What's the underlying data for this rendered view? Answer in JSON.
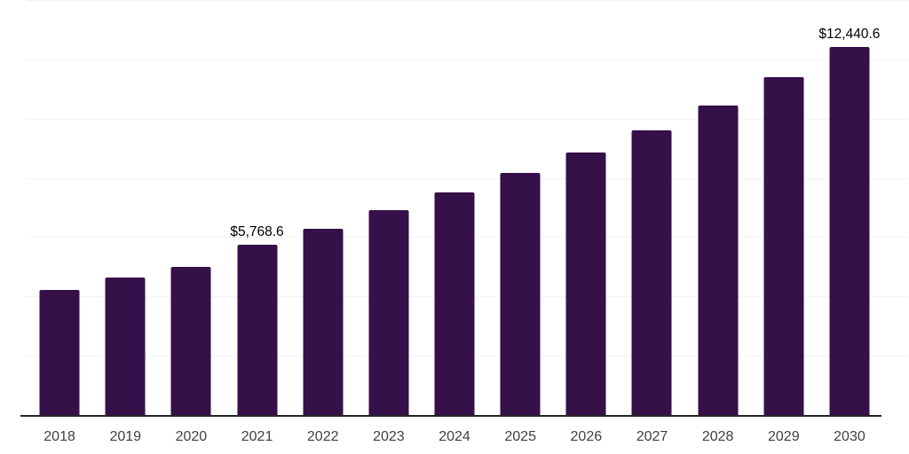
{
  "chart_data": {
    "type": "bar",
    "title": "",
    "xlabel": "",
    "ylabel": "",
    "categories": [
      "2018",
      "2019",
      "2020",
      "2021",
      "2022",
      "2023",
      "2024",
      "2025",
      "2026",
      "2027",
      "2028",
      "2029",
      "2030"
    ],
    "values": [
      4250,
      4670,
      5030,
      5768.6,
      6310,
      6940,
      7540,
      8200,
      8890,
      9630,
      10470,
      11430,
      12440.6
    ],
    "annotations": [
      {
        "category": "2021",
        "text": "$5,768.6"
      },
      {
        "category": "2030",
        "text": "$12,440.6"
      }
    ],
    "ylim": [
      0,
      14000
    ],
    "grid_step": 2000,
    "grid": true,
    "legend": false,
    "y_tick_labels_visible": false,
    "colors": {
      "bar": "#351049",
      "axis": "#262626",
      "gridline": "#f2f2f2",
      "annotation_text": "#000000",
      "tick_text": "#404040",
      "background": "#ffffff"
    }
  }
}
